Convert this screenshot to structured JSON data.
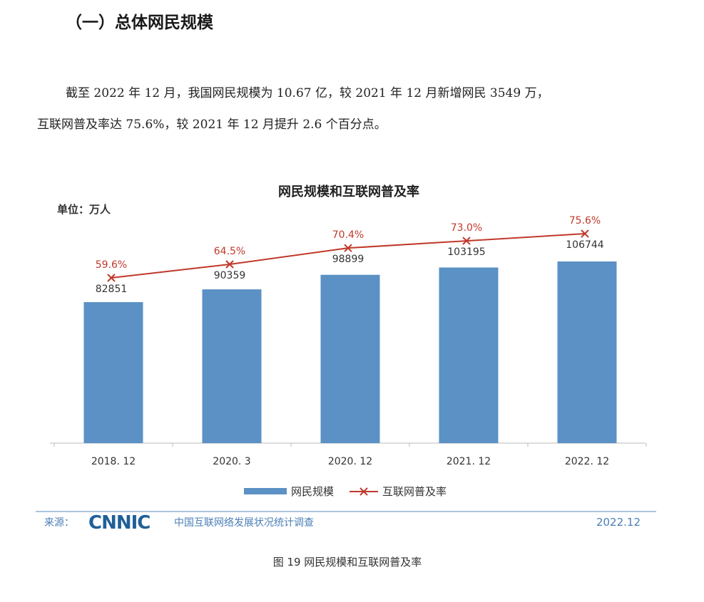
{
  "heading": "（一）总体网民规模",
  "paragraph": {
    "line1": "截至 2022 年 12 月，我国网民规模为 10.67 亿，较 2021 年 12 月新增网民 3549 万，",
    "line2": "互联网普及率达 75.6%，较 2021 年 12 月提升 2.6 个百分点。"
  },
  "chart_data": {
    "type": "bar",
    "title": "网民规模和互联网普及率",
    "unit_label": "单位：万人",
    "categories": [
      "2018. 12",
      "2020. 3",
      "2020. 12",
      "2021. 12",
      "2022. 12"
    ],
    "series": [
      {
        "name": "网民规模",
        "type": "bar",
        "color": "#5b91c4",
        "values": [
          82851,
          90359,
          98899,
          103195,
          106744
        ],
        "labels": [
          "82851",
          "90359",
          "98899",
          "103195",
          "106744"
        ]
      },
      {
        "name": "互联网普及率",
        "type": "line",
        "color": "#c0392b",
        "values": [
          59.6,
          64.5,
          70.4,
          73.0,
          75.6
        ],
        "labels": [
          "59.6%",
          "64.5%",
          "70.4%",
          "73.0%",
          "75.6%"
        ]
      }
    ],
    "ylim": [
      0,
      106744
    ],
    "legend": "bottom",
    "grid": false
  },
  "footer": {
    "source_label": "来源：",
    "logo": "CNNIC",
    "source_name": "中国互联网络发展状况统计调查",
    "date": "2022.12"
  },
  "watermark": "CNNIC",
  "caption": "图 19  网民规模和互联网普及率"
}
